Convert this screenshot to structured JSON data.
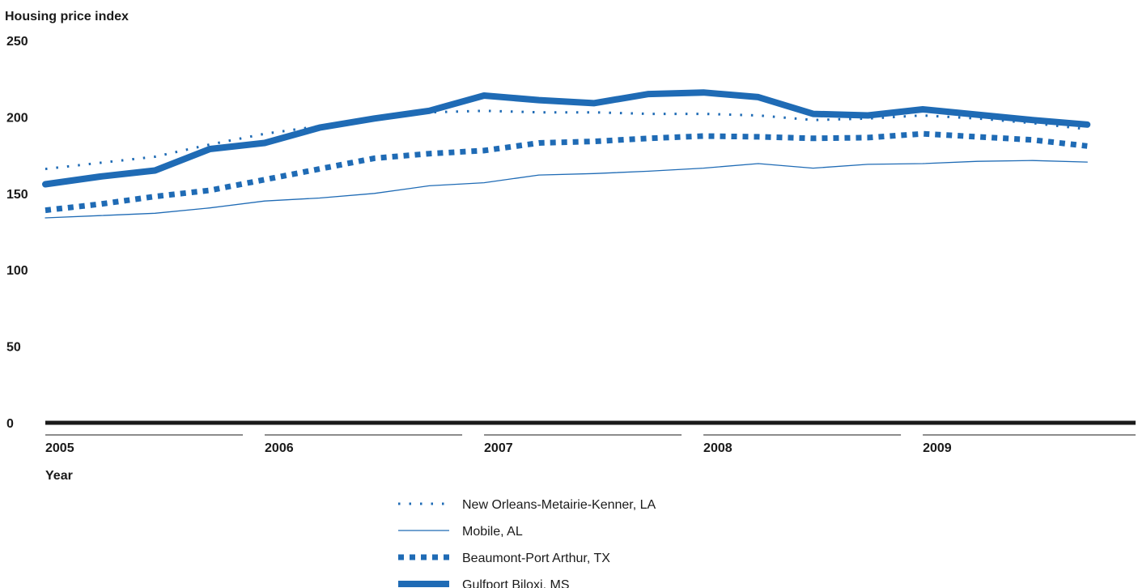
{
  "chart_data": {
    "type": "line",
    "ylabel": "Housing price index",
    "xlabel": "Year",
    "ylim": [
      0,
      250
    ],
    "yticks": [
      0,
      50,
      100,
      150,
      200,
      250
    ],
    "xlim": [
      2005.0,
      2009.9
    ],
    "xticks": [
      {
        "label": "2005",
        "value": 2005
      },
      {
        "label": "2006",
        "value": 2006
      },
      {
        "label": "2007",
        "value": 2007
      },
      {
        "label": "2008",
        "value": 2008
      },
      {
        "label": "2009",
        "value": 2009
      }
    ],
    "grid": false,
    "legend_position": "bottom-center",
    "x": [
      2005.0,
      2005.25,
      2005.5,
      2005.75,
      2006.0,
      2006.25,
      2006.5,
      2006.75,
      2007.0,
      2007.25,
      2007.5,
      2007.75,
      2008.0,
      2008.25,
      2008.5,
      2008.75,
      2009.0,
      2009.25,
      2009.5,
      2009.75
    ],
    "series": [
      {
        "name": "New Orleans-Metairie-Kenner, LA",
        "style": "dotted",
        "color": "#1f6bb5",
        "values": [
          166,
          170,
          174,
          182,
          189,
          194,
          198,
          203,
          204,
          203,
          203,
          202,
          202,
          201,
          198,
          199,
          201,
          199,
          196,
          192
        ]
      },
      {
        "name": "Mobile, AL",
        "style": "thin",
        "color": "#1f6bb5",
        "values": [
          134,
          135.5,
          137,
          140.5,
          145,
          147,
          150,
          155,
          157,
          162,
          163,
          164.5,
          166.5,
          169.5,
          166.5,
          169,
          169.5,
          171,
          171.5,
          170.5
        ]
      },
      {
        "name": "Beaumont-Port Arthur, TX",
        "style": "dashed",
        "color": "#1f6bb5",
        "values": [
          139,
          143,
          148,
          152,
          159,
          166,
          173,
          176,
          178,
          183,
          184,
          186,
          187.5,
          187,
          186,
          186.5,
          189,
          187,
          185,
          181
        ]
      },
      {
        "name": "Gulfport Biloxi, MS",
        "style": "thick",
        "color": "#1f6bb5",
        "values": [
          156,
          161,
          165,
          179,
          183,
          193,
          199,
          204,
          214,
          211,
          209,
          215,
          216,
          213,
          202,
          201,
          205,
          201.5,
          198,
          195
        ]
      }
    ]
  }
}
